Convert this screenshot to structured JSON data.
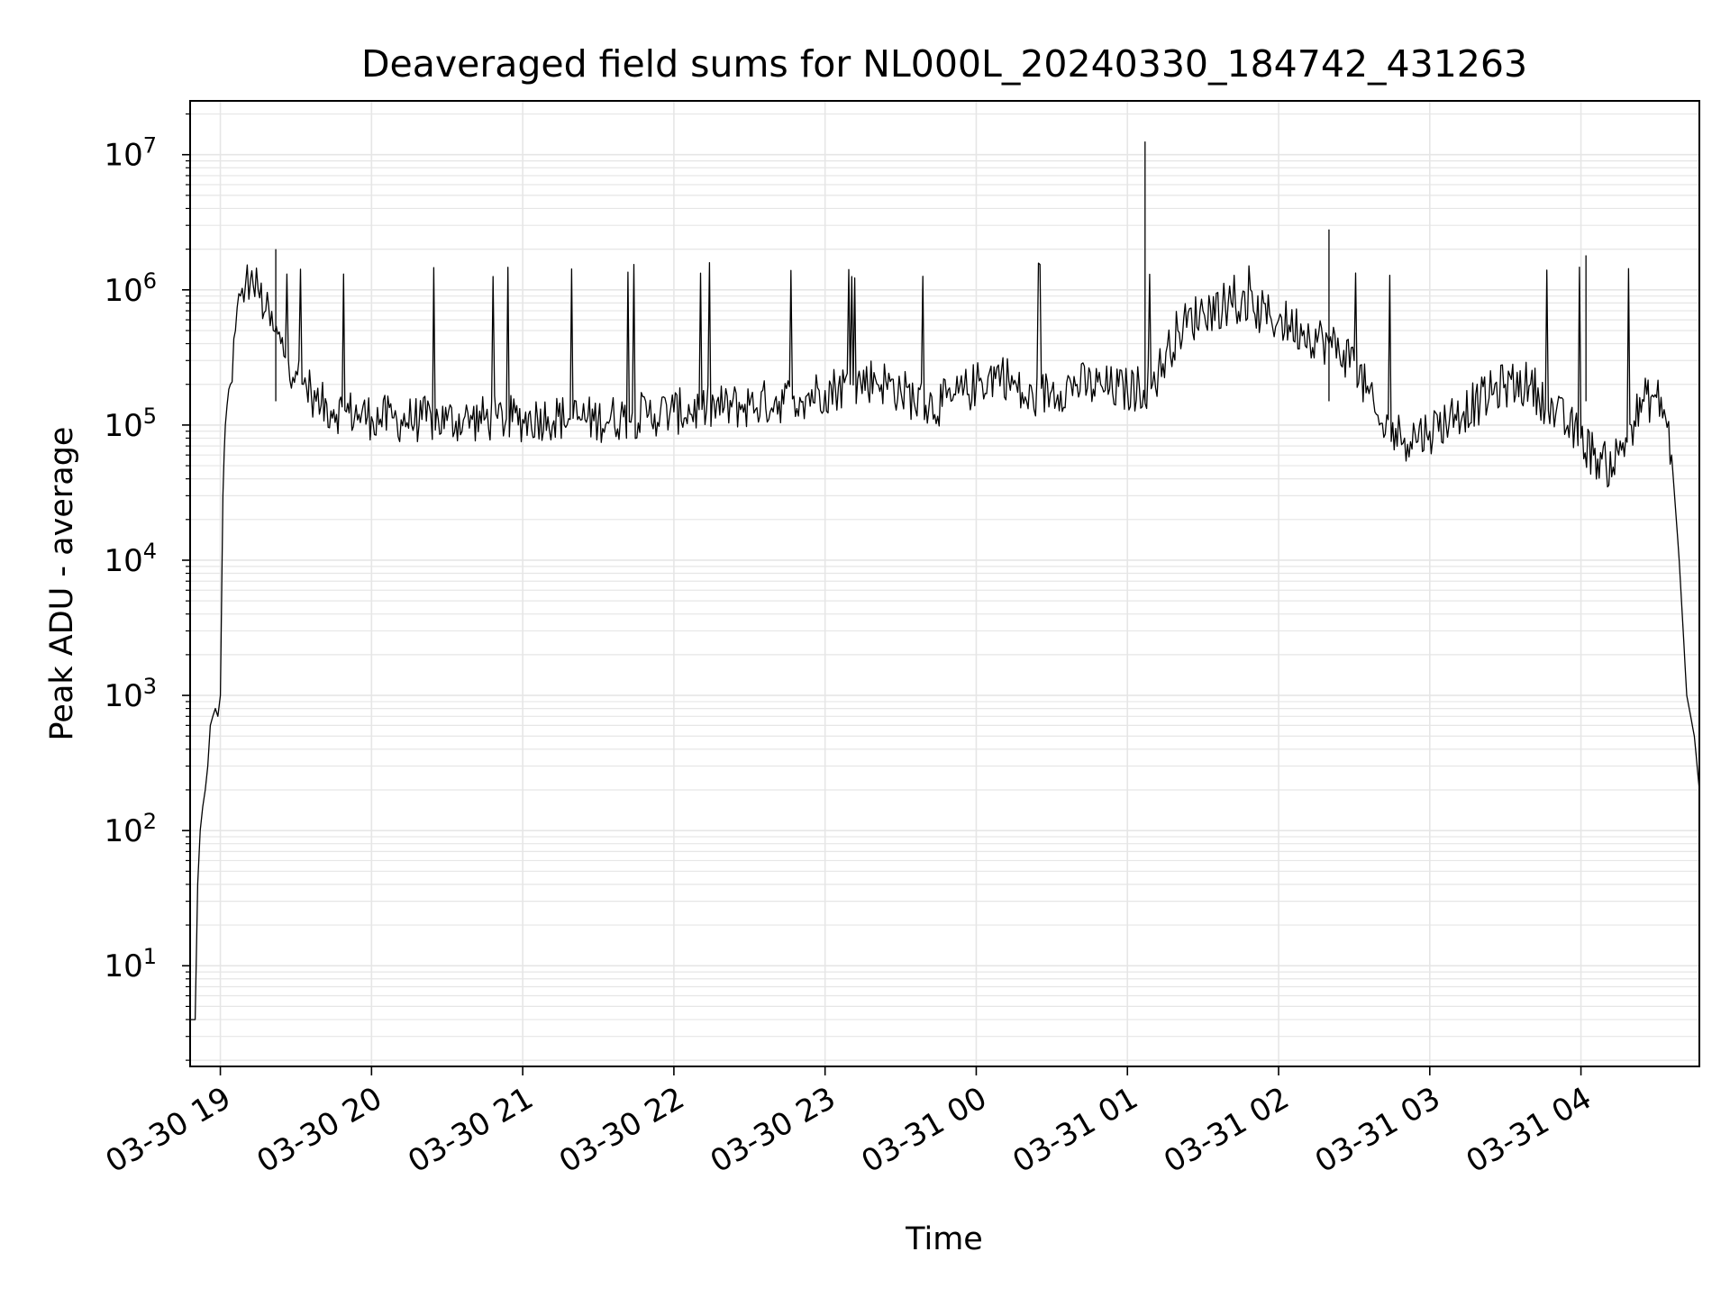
{
  "chart_data": {
    "type": "line",
    "title": "Deaveraged field sums for NL000L_20240330_184742_431263",
    "xlabel": "Time",
    "ylabel": "Peak ADU - average",
    "yscale": "log",
    "ylim": [
      1.8,
      25000000
    ],
    "xlim": [
      "2024-03-30 18:48",
      "2024-03-31 04:47"
    ],
    "grid": true,
    "line_color": "#000000",
    "grid_color": "#e6e6e6",
    "x_ticks": [
      {
        "value": "2024-03-30 19:00",
        "label": "03-30 19"
      },
      {
        "value": "2024-03-30 20:00",
        "label": "03-30 20"
      },
      {
        "value": "2024-03-30 21:00",
        "label": "03-30 21"
      },
      {
        "value": "2024-03-30 22:00",
        "label": "03-30 22"
      },
      {
        "value": "2024-03-30 23:00",
        "label": "03-30 23"
      },
      {
        "value": "2024-03-31 00:00",
        "label": "03-31 00"
      },
      {
        "value": "2024-03-31 01:00",
        "label": "03-31 01"
      },
      {
        "value": "2024-03-31 02:00",
        "label": "03-31 02"
      },
      {
        "value": "2024-03-31 03:00",
        "label": "03-31 03"
      },
      {
        "value": "2024-03-31 04:00",
        "label": "03-31 04"
      }
    ],
    "y_ticks": [
      {
        "value": 10,
        "base": "10",
        "exp": "1"
      },
      {
        "value": 100,
        "base": "10",
        "exp": "2"
      },
      {
        "value": 1000,
        "base": "10",
        "exp": "3"
      },
      {
        "value": 10000,
        "base": "10",
        "exp": "4"
      },
      {
        "value": 100000,
        "base": "10",
        "exp": "5"
      },
      {
        "value": 1000000,
        "base": "10",
        "exp": "6"
      },
      {
        "value": 10000000,
        "base": "10",
        "exp": "7"
      }
    ],
    "series": [
      {
        "x": [
          "2024-03-30 18:48",
          "2024-03-30 18:49",
          "2024-03-30 18:50",
          "2024-03-30 18:51",
          "2024-03-30 18:52",
          "2024-03-30 18:53",
          "2024-03-30 18:54",
          "2024-03-30 18:55",
          "2024-03-30 18:56",
          "2024-03-30 18:57",
          "2024-03-30 18:58",
          "2024-03-30 18:59",
          "2024-03-30 19:00",
          "2024-03-30 19:01",
          "2024-03-30 19:02",
          "2024-03-30 19:04",
          "2024-03-30 19:06",
          "2024-03-30 19:08",
          "2024-03-30 19:10",
          "2024-03-30 19:12",
          "2024-03-30 19:13",
          "2024-03-30 19:15",
          "2024-03-30 19:18",
          "2024-03-30 19:21",
          "2024-03-30 19:24",
          "2024-03-30 19:27",
          "2024-03-30 19:30",
          "2024-03-30 19:33",
          "2024-03-30 19:36",
          "2024-03-30 19:38",
          "2024-03-30 19:40",
          "2024-03-30 19:45",
          "2024-03-30 19:50",
          "2024-03-30 19:55",
          "2024-03-30 20:00",
          "2024-03-30 20:10",
          "2024-03-30 20:20",
          "2024-03-30 20:30",
          "2024-03-30 20:40",
          "2024-03-30 20:50",
          "2024-03-30 21:00",
          "2024-03-30 21:10",
          "2024-03-30 21:20",
          "2024-03-30 21:30",
          "2024-03-30 21:40",
          "2024-03-30 21:50",
          "2024-03-30 22:00",
          "2024-03-30 22:10",
          "2024-03-30 22:20",
          "2024-03-30 22:30",
          "2024-03-30 22:40",
          "2024-03-30 22:50",
          "2024-03-30 23:00",
          "2024-03-30 23:10",
          "2024-03-30 23:20",
          "2024-03-30 23:30",
          "2024-03-30 23:40",
          "2024-03-30 23:50",
          "2024-03-31 00:00",
          "2024-03-31 00:10",
          "2024-03-31 00:20",
          "2024-03-31 00:30",
          "2024-03-31 00:40",
          "2024-03-31 00:50",
          "2024-03-31 01:00",
          "2024-03-31 01:10",
          "2024-03-31 01:20",
          "2024-03-31 01:30",
          "2024-03-31 01:40",
          "2024-03-31 01:50",
          "2024-03-31 02:00",
          "2024-03-31 02:10",
          "2024-03-31 02:20",
          "2024-03-31 02:30",
          "2024-03-31 02:40",
          "2024-03-31 02:50",
          "2024-03-31 03:00",
          "2024-03-31 03:10",
          "2024-03-31 03:20",
          "2024-03-31 03:30",
          "2024-03-31 03:40",
          "2024-03-31 03:50",
          "2024-03-31 04:00",
          "2024-03-31 04:05",
          "2024-03-31 04:10",
          "2024-03-31 04:15",
          "2024-03-31 04:20",
          "2024-03-31 04:25",
          "2024-03-31 04:30",
          "2024-03-31 04:33",
          "2024-03-31 04:36",
          "2024-03-31 04:39",
          "2024-03-31 04:42",
          "2024-03-31 04:45",
          "2024-03-31 04:47"
        ],
        "values": [
          4,
          4,
          4,
          40,
          100,
          150,
          200,
          300,
          600,
          700,
          800,
          700,
          1000,
          30000,
          100000,
          200000,
          500000,
          900000,
          1100000,
          1200000,
          1100000,
          1000000,
          700000,
          500000,
          400000,
          300000,
          250000,
          200000,
          180000,
          150000,
          140000,
          130000,
          125000,
          120000,
          115000,
          110000,
          110000,
          108000,
          110000,
          112000,
          110000,
          115000,
          112000,
          110000,
          115000,
          120000,
          125000,
          130000,
          135000,
          140000,
          150000,
          160000,
          180000,
          200000,
          220000,
          180000,
          140000,
          150000,
          200000,
          250000,
          150000,
          180000,
          200000,
          190000,
          180000,
          200000,
          500000,
          700000,
          800000,
          700000,
          600000,
          500000,
          400000,
          300000,
          100000,
          80000,
          90000,
          120000,
          150000,
          200000,
          200000,
          120000,
          80000,
          60000,
          50000,
          60000,
          100000,
          150000,
          160000,
          130000,
          60000,
          10000,
          1000,
          500,
          200
        ]
      }
    ],
    "spikes": [
      {
        "x": "2024-03-30 19:22",
        "value": 2000000
      },
      {
        "x": "2024-03-31 01:07",
        "value": 12500000
      },
      {
        "x": "2024-03-31 02:20",
        "value": 2800000
      },
      {
        "x": "2024-03-31 04:02",
        "value": 1800000
      }
    ]
  }
}
